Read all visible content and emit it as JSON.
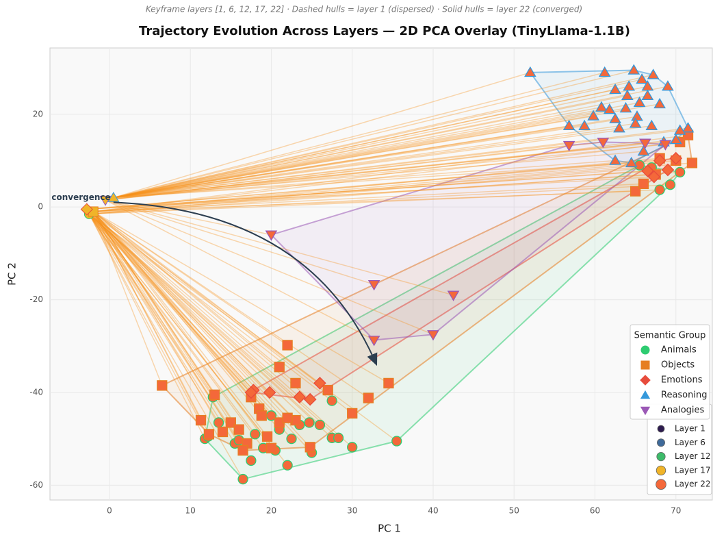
{
  "chart_data": {
    "type": "scatter",
    "subtitle": "Keyframe layers [1, 6, 12, 17, 22]  ·  Dashed hulls = layer 1 (dispersed)  ·  Solid hulls = layer 22 (converged)",
    "title": "Trajectory Evolution Across Layers — 2D PCA Overlay (TinyLlama-1.1B)",
    "x_label": "PC 1",
    "y_label": "PC 2",
    "xlim": [
      -7.35,
      74.5
    ],
    "ylim": [
      -63.2,
      34.3
    ],
    "xticks": [
      0,
      10,
      20,
      30,
      40,
      50,
      60,
      70
    ],
    "yticks": [
      -60,
      -40,
      -20,
      0,
      20
    ],
    "grid": true,
    "legend_title": "Semantic Group",
    "trajectory_color": "#f7931e",
    "start_color": "#f0b429",
    "point_fill": "#f4683a",
    "series": [
      {
        "name": "Animals",
        "color": "#2ecc71",
        "marker": "circle",
        "start": [
          -2.5,
          -1.5
        ],
        "x": [
          16.5,
          35.5,
          12.8,
          11.8,
          13.5,
          17.5,
          22,
          25,
          30,
          27.5,
          28.3,
          27.5,
          23.5,
          18,
          20,
          24.7,
          21,
          15.5,
          19,
          68,
          69.3,
          70.5,
          67,
          65.5,
          12.2,
          16,
          22.5,
          26,
          20.5
        ],
        "y": [
          -58.7,
          -50.5,
          -41,
          -50,
          -46.5,
          -54.7,
          -55.7,
          -53,
          -51.8,
          -49.8,
          -49.8,
          -41.8,
          -47,
          -49,
          -45,
          -46.5,
          -48,
          -51,
          -52,
          3.7,
          4.8,
          7.5,
          8.5,
          9,
          -49.5,
          -50.3,
          -50,
          -47,
          -52.5
        ]
      },
      {
        "name": "Objects",
        "color": "#e67e22",
        "marker": "square",
        "start": [
          -2,
          -1
        ],
        "x": [
          6.5,
          11.3,
          12.3,
          13,
          17.5,
          18.5,
          21,
          22,
          23,
          27,
          30,
          32,
          34.5,
          14,
          15,
          16,
          17,
          19.5,
          21,
          23,
          24.8,
          20,
          65,
          66,
          67.5,
          70,
          70.5,
          72,
          71.5,
          68,
          16.5,
          18.8,
          22
        ],
        "y": [
          -38.5,
          -46,
          -49,
          -40.5,
          -41,
          -43.5,
          -34.5,
          -29.8,
          -38,
          -39.5,
          -44.5,
          -41.2,
          -38,
          -48.5,
          -46.5,
          -48,
          -51,
          -49.5,
          -46.5,
          -46,
          -51.8,
          -52,
          3.4,
          5,
          7,
          10,
          14,
          9.5,
          15.5,
          10.5,
          -52.5,
          -45,
          -45.5
        ]
      },
      {
        "name": "Emotions",
        "color": "#e74c3c",
        "marker": "diamond",
        "start": [
          -2.8,
          -0.5
        ],
        "x": [
          17.8,
          17.5,
          19.8,
          23.5,
          24.8,
          26,
          69,
          67.3,
          68,
          70,
          66.5
        ],
        "y": [
          -39.5,
          -40,
          -40,
          -41,
          -41.5,
          -38,
          8,
          6.5,
          10,
          10.5,
          7.8
        ]
      },
      {
        "name": "Reasoning",
        "color": "#3498db",
        "marker": "triangle-up",
        "start": [
          0.5,
          2
        ],
        "x": [
          52,
          61.2,
          64.8,
          67.2,
          65.8,
          64.2,
          66.5,
          69,
          62.5,
          64,
          66.5,
          60.8,
          61.8,
          63.8,
          65.5,
          68,
          59.8,
          62.5,
          65.2,
          63,
          65,
          67,
          56.8,
          58.7,
          71.5,
          70.5,
          62.5,
          64.5,
          66,
          68.5,
          70
        ],
        "y": [
          29,
          29,
          29.5,
          28.5,
          27.5,
          26,
          26,
          26,
          25.3,
          24,
          24,
          21.5,
          21,
          21.3,
          22.5,
          22.2,
          19.6,
          19,
          19.5,
          17,
          18,
          17.5,
          17.5,
          17.5,
          17,
          16.5,
          10,
          9.5,
          12,
          14,
          14.5
        ]
      },
      {
        "name": "Analogies",
        "color": "#9b59b6",
        "marker": "triangle-down",
        "start": [
          -0.5,
          1.5
        ],
        "x": [
          20,
          32.7,
          42.5,
          32.7,
          40,
          56.8,
          61,
          66.2,
          68.7
        ],
        "y": [
          -6,
          -16.7,
          -19,
          -28.7,
          -27.5,
          13.3,
          14,
          13.8,
          13.5
        ]
      }
    ],
    "layers": [
      {
        "name": "Layer 1",
        "color": "#2d1b4e"
      },
      {
        "name": "Layer 6",
        "color": "#3f6a9a"
      },
      {
        "name": "Layer 12",
        "color": "#3dbb6a"
      },
      {
        "name": "Layer 17",
        "color": "#f0b429"
      },
      {
        "name": "Layer 22",
        "color": "#f4683a"
      }
    ],
    "annotations": [
      {
        "text": "convergence",
        "x": -3.5,
        "y": 2
      }
    ],
    "arrow": {
      "from": [
        0.5,
        1
      ],
      "to": [
        33,
        -34
      ]
    }
  }
}
